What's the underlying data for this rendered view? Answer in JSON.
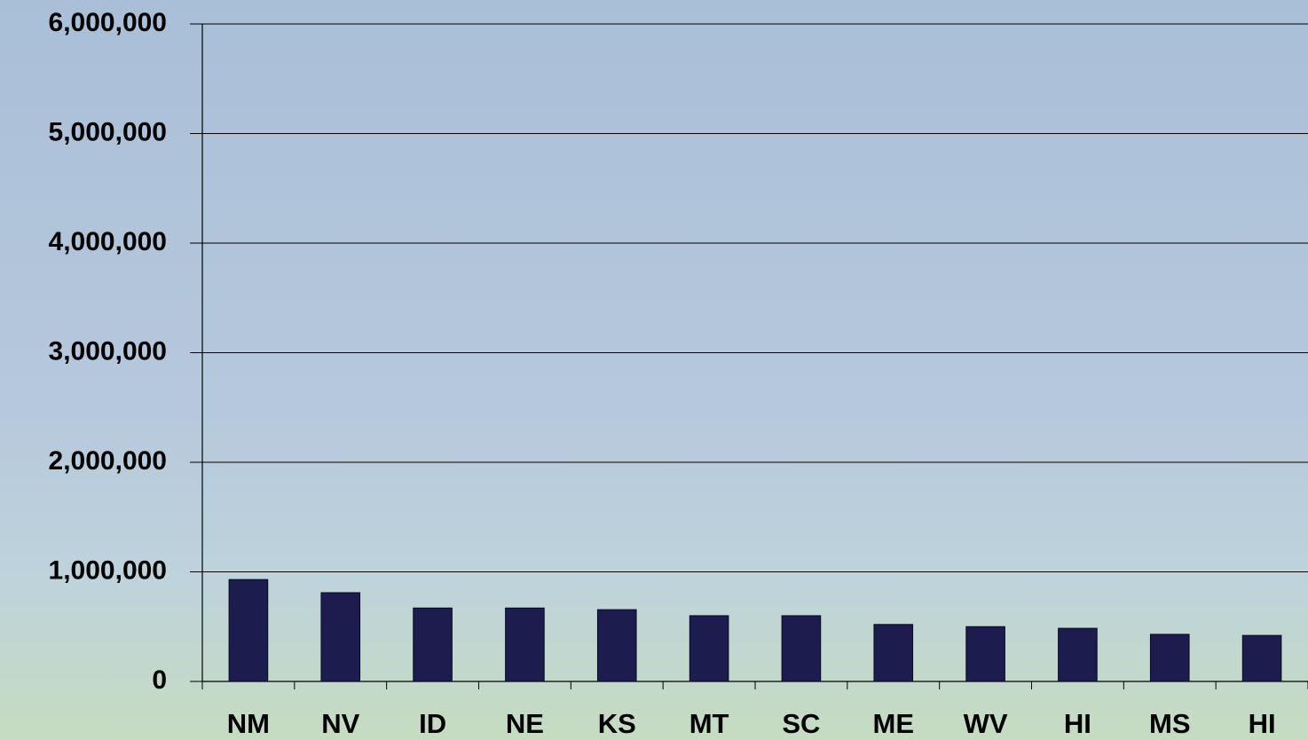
{
  "chart_data": {
    "type": "bar",
    "categories": [
      "NM",
      "NV",
      "ID",
      "NE",
      "KS",
      "MT",
      "SC",
      "ME",
      "WV",
      "HI",
      "MS",
      "HI"
    ],
    "values": [
      930000,
      810000,
      670000,
      670000,
      655000,
      600000,
      600000,
      520000,
      500000,
      485000,
      430000,
      420000
    ],
    "color": "#1c1c4e",
    "ylim": [
      0,
      6000000
    ],
    "yticks": [
      0,
      {
        "value": 1000000,
        "label": "1,000,000"
      },
      {
        "value": 2000000,
        "label": "2,000,000"
      },
      {
        "value": 3000000,
        "label": "3,000,000"
      },
      {
        "value": 4000000,
        "label": "4,000,000"
      },
      {
        "value": 5000000,
        "label": "5,000,000"
      },
      {
        "value": 6000000,
        "label": "6,000,000"
      }
    ],
    "grid": true
  }
}
